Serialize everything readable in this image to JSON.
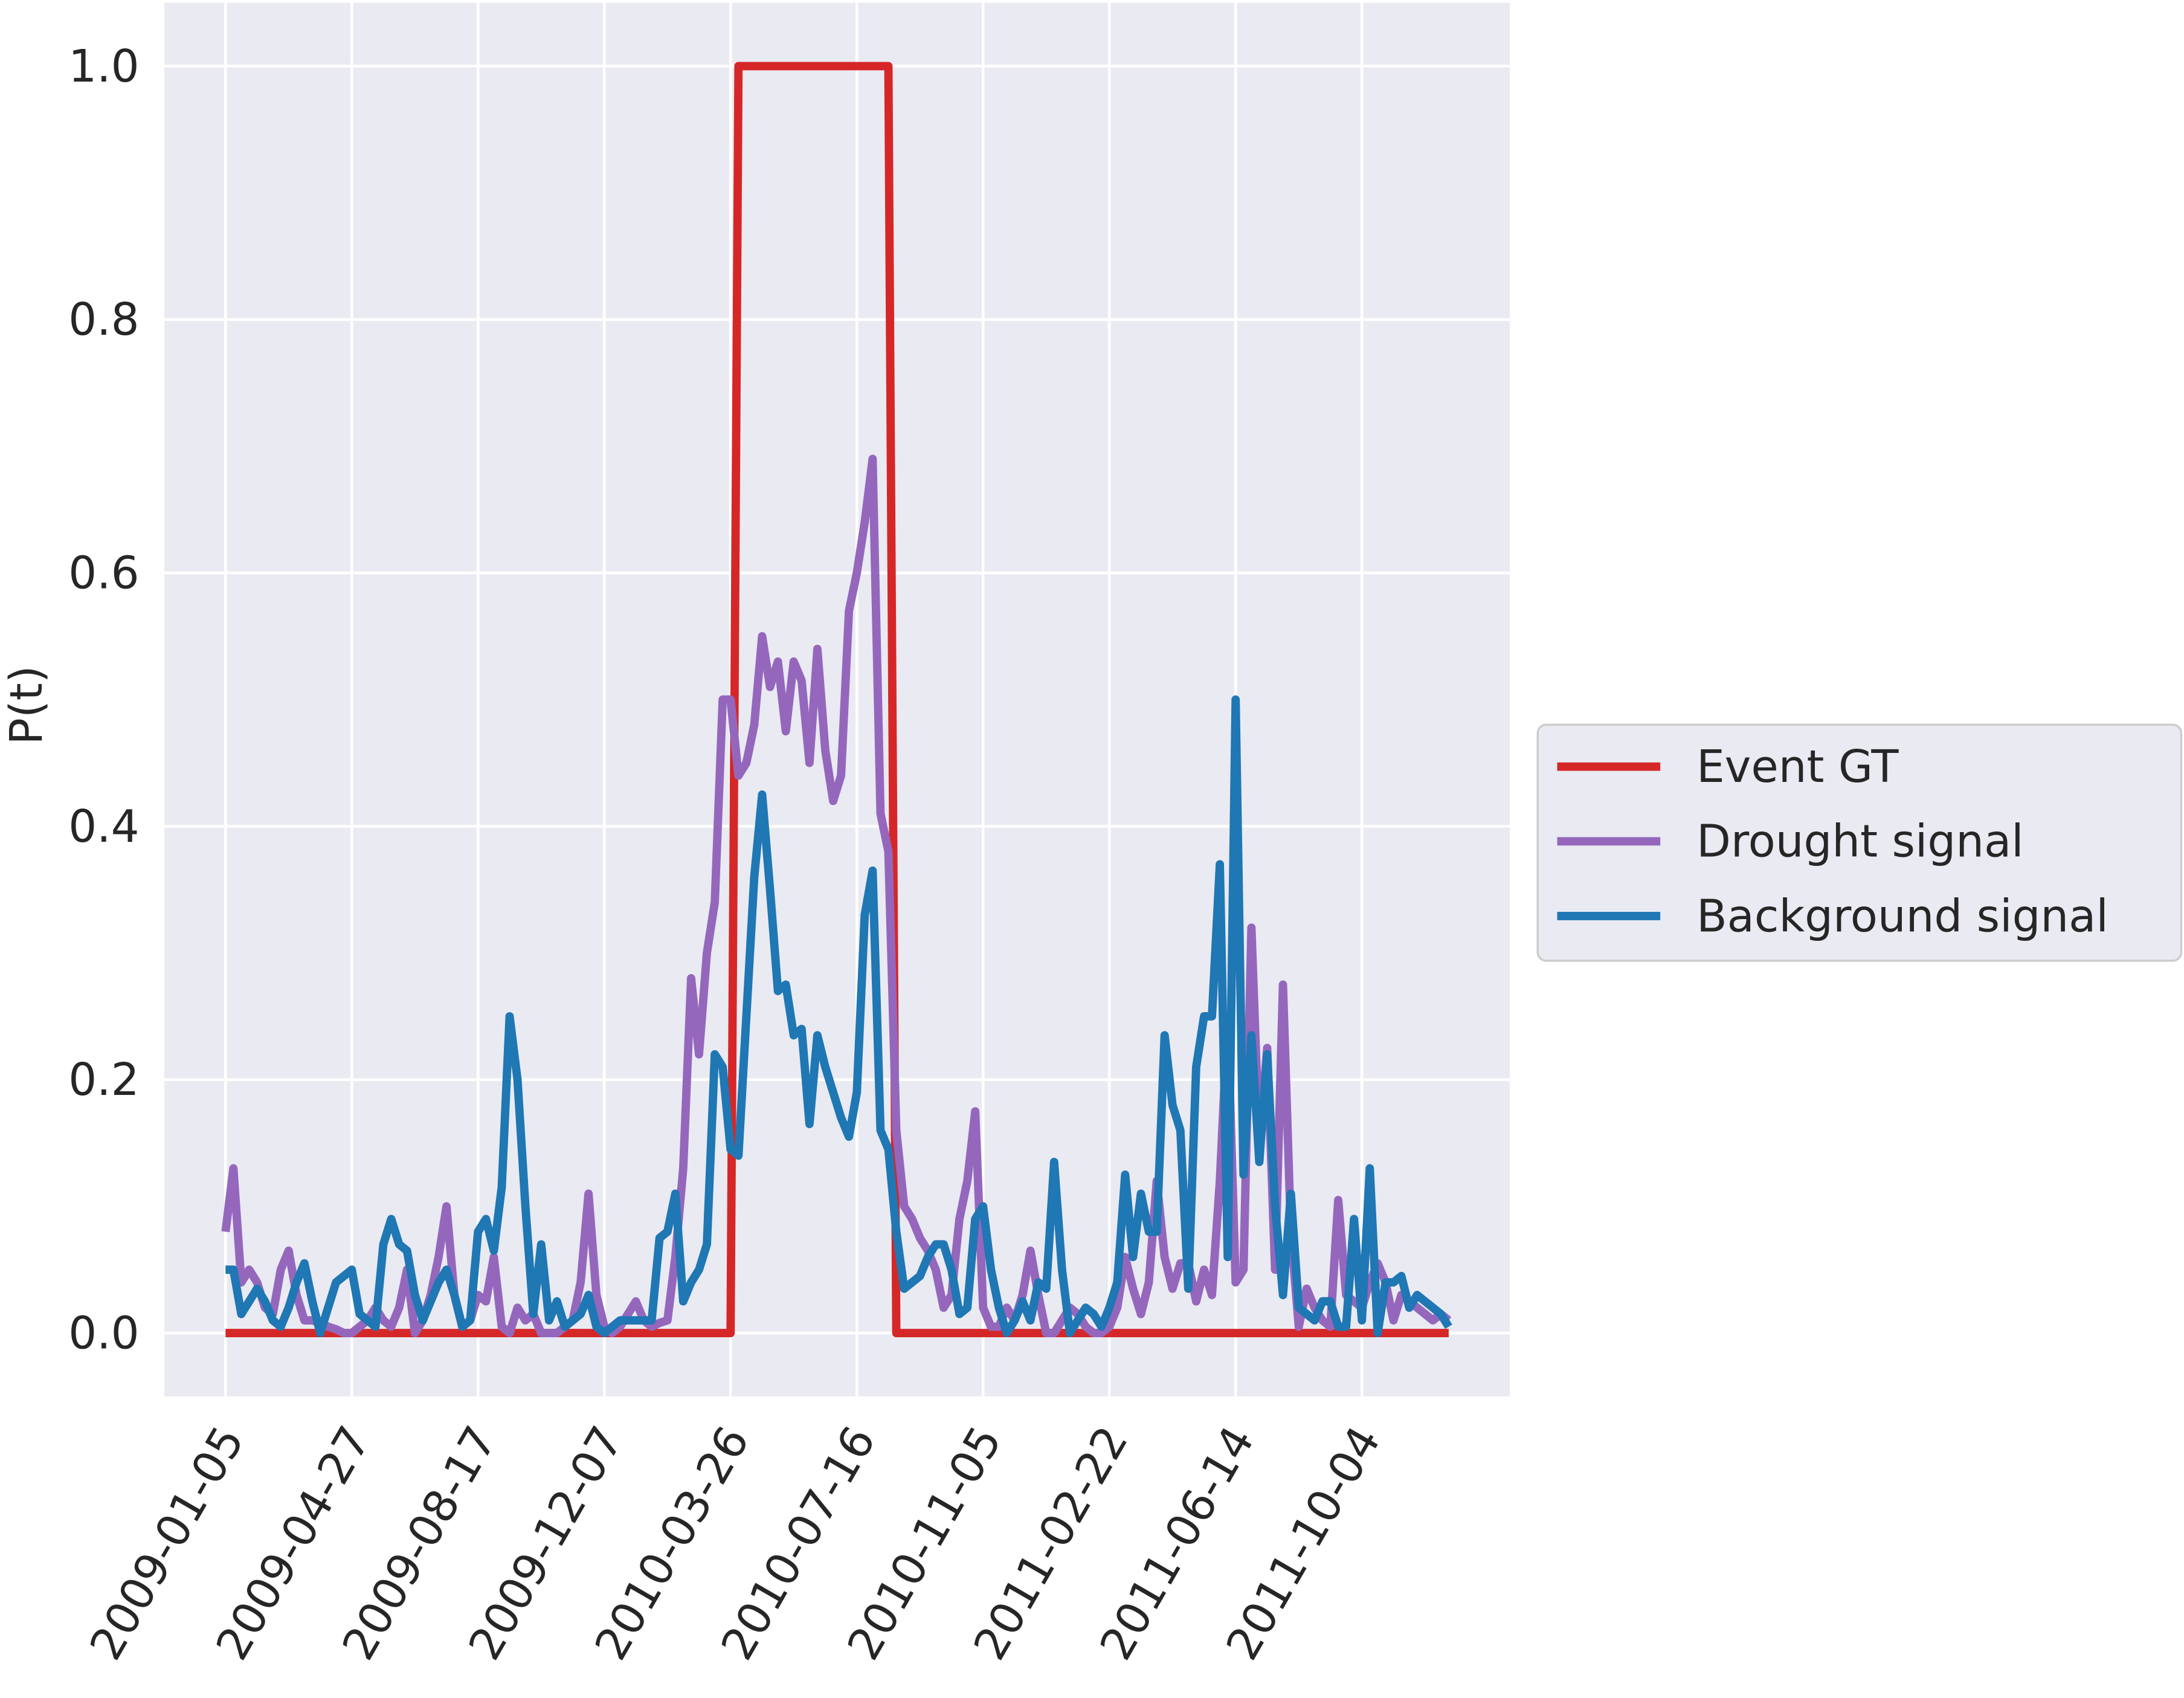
{
  "chart_data": {
    "type": "line",
    "ylabel": "P(t)",
    "categories": [
      "2009-01-05",
      null,
      null,
      null,
      null,
      null,
      null,
      null,
      null,
      null,
      null,
      null,
      null,
      null,
      null,
      null,
      "2009-04-27",
      null,
      null,
      null,
      null,
      null,
      null,
      null,
      null,
      null,
      null,
      null,
      null,
      null,
      null,
      null,
      "2009-08-17",
      null,
      null,
      null,
      null,
      null,
      null,
      null,
      null,
      null,
      null,
      null,
      null,
      null,
      null,
      null,
      "2009-12-07",
      null,
      null,
      null,
      null,
      null,
      null,
      null,
      null,
      null,
      null,
      null,
      null,
      null,
      null,
      null,
      "2010-03-26",
      null,
      null,
      null,
      null,
      null,
      null,
      null,
      null,
      null,
      null,
      null,
      null,
      null,
      null,
      null,
      "2010-07-16",
      null,
      null,
      null,
      null,
      null,
      null,
      null,
      null,
      null,
      null,
      null,
      null,
      null,
      null,
      null,
      "2010-11-05",
      null,
      null,
      null,
      null,
      null,
      null,
      null,
      null,
      null,
      null,
      null,
      null,
      null,
      null,
      null,
      "2011-02-22",
      null,
      null,
      null,
      null,
      null,
      null,
      null,
      null,
      null,
      null,
      null,
      null,
      null,
      null,
      null,
      "2011-06-14",
      null,
      null,
      null,
      null,
      null,
      null,
      null,
      null,
      null,
      null,
      null,
      null,
      null,
      null,
      null,
      "2011-10-04",
      null,
      null,
      null,
      null,
      null,
      null,
      null,
      null,
      null,
      null,
      null
    ],
    "series": [
      {
        "name": "Event GT",
        "color": "#d62728",
        "values": [
          0,
          0,
          0,
          0,
          0,
          0,
          0,
          0,
          0,
          0,
          0,
          0,
          0,
          0,
          0,
          0,
          0,
          0,
          0,
          0,
          0,
          0,
          0,
          0,
          0,
          0,
          0,
          0,
          0,
          0,
          0,
          0,
          0,
          0,
          0,
          0,
          0,
          0,
          0,
          0,
          0,
          0,
          0,
          0,
          0,
          0,
          0,
          0,
          0,
          0,
          0,
          0,
          0,
          0,
          0,
          0,
          0,
          0,
          0,
          0,
          0,
          0,
          0,
          0,
          0,
          1,
          1,
          1,
          1,
          1,
          1,
          1,
          1,
          1,
          1,
          1,
          1,
          1,
          1,
          1,
          1,
          1,
          1,
          1,
          1,
          0,
          0,
          0,
          0,
          0,
          0,
          0,
          0,
          0,
          0,
          0,
          0,
          0,
          0,
          0,
          0,
          0,
          0,
          0,
          0,
          0,
          0,
          0,
          0,
          0,
          0,
          0,
          0,
          0,
          0,
          0,
          0,
          0,
          0,
          0,
          0,
          0,
          0,
          0,
          0,
          0,
          0,
          0,
          0,
          0,
          0,
          0,
          0,
          0,
          0,
          0,
          0,
          0,
          0,
          0,
          0,
          0,
          0,
          0,
          0,
          0,
          0,
          0,
          0,
          0,
          0,
          0,
          0,
          0,
          0,
          0
        ]
      },
      {
        "name": "Drought signal",
        "color": "#9467bd",
        "values": [
          0.08,
          0.13,
          0.04,
          0.05,
          0.04,
          0.02,
          0.015,
          0.05,
          0.065,
          0.03,
          0.01,
          0.01,
          0.008,
          0.005,
          0.003,
          0,
          0,
          0.005,
          0.01,
          0.02,
          0.01,
          0.005,
          0.02,
          0.05,
          0,
          0.01,
          0.03,
          0.06,
          0.1,
          0.03,
          0.005,
          0.01,
          0.03,
          0.025,
          0.06,
          0.005,
          0,
          0.02,
          0.01,
          0.015,
          0,
          0,
          0,
          0.005,
          0.01,
          0.04,
          0.11,
          0.03,
          0.005,
          0,
          0.005,
          0.015,
          0.025,
          0.01,
          0.005,
          0.008,
          0.01,
          0.06,
          0.13,
          0.28,
          0.22,
          0.3,
          0.34,
          0.5,
          0.5,
          0.44,
          0.45,
          0.48,
          0.55,
          0.51,
          0.53,
          0.475,
          0.53,
          0.515,
          0.45,
          0.54,
          0.46,
          0.42,
          0.44,
          0.57,
          0.6,
          0.64,
          0.69,
          0.41,
          0.38,
          0.16,
          0.1,
          0.09,
          0.075,
          0.065,
          0.05,
          0.02,
          0.03,
          0.09,
          0.12,
          0.175,
          0.02,
          0.005,
          0.005,
          0.02,
          0.01,
          0.03,
          0.065,
          0.03,
          0,
          0,
          0.01,
          0.02,
          0.015,
          0.005,
          0,
          0,
          0.005,
          0.02,
          0.06,
          0.035,
          0.015,
          0.04,
          0.12,
          0.06,
          0.035,
          0.055,
          0.055,
          0.025,
          0.05,
          0.03,
          0.12,
          0.25,
          0.04,
          0.05,
          0.32,
          0.15,
          0.225,
          0.05,
          0.275,
          0.08,
          0.005,
          0.035,
          0.02,
          0.01,
          0.005,
          0.105,
          0.03,
          0.025,
          0.02,
          0.04,
          0.055,
          0.04,
          0.01,
          0.03,
          0.025,
          0.02,
          0.015,
          0.01,
          0.015,
          0.01
        ]
      },
      {
        "name": "Background signal",
        "color": "#1f77b4",
        "values": [
          0.05,
          0.05,
          0.015,
          0.025,
          0.035,
          0.025,
          0.01,
          0.005,
          0.02,
          0.04,
          0.055,
          0.025,
          0,
          0.02,
          0.04,
          0.045,
          0.05,
          0.015,
          0.01,
          0.005,
          0.07,
          0.09,
          0.07,
          0.065,
          0.03,
          0.01,
          0.025,
          0.04,
          0.05,
          0.03,
          0.005,
          0.01,
          0.08,
          0.09,
          0.065,
          0.115,
          0.25,
          0.2,
          0.1,
          0.015,
          0.07,
          0.01,
          0.025,
          0.005,
          0.01,
          0.015,
          0.03,
          0.005,
          0,
          0.005,
          0.01,
          0.01,
          0.01,
          0.01,
          0.01,
          0.075,
          0.08,
          0.11,
          0.025,
          0.04,
          0.05,
          0.07,
          0.22,
          0.21,
          0.145,
          0.14,
          0.25,
          0.36,
          0.425,
          0.35,
          0.27,
          0.275,
          0.235,
          0.24,
          0.165,
          0.235,
          0.21,
          0.19,
          0.17,
          0.155,
          0.19,
          0.33,
          0.365,
          0.16,
          0.145,
          0.08,
          0.035,
          0.04,
          0.045,
          0.06,
          0.07,
          0.07,
          0.05,
          0.015,
          0.02,
          0.09,
          0.1,
          0.05,
          0.02,
          0,
          0.01,
          0.025,
          0.01,
          0.04,
          0.035,
          0.135,
          0.05,
          0,
          0.01,
          0.02,
          0.015,
          0.005,
          0.02,
          0.04,
          0.125,
          0.06,
          0.11,
          0.08,
          0.08,
          0.235,
          0.18,
          0.16,
          0.035,
          0.21,
          0.25,
          0.25,
          0.37,
          0.06,
          0.5,
          0.125,
          0.235,
          0.135,
          0.22,
          0.1,
          0.03,
          0.11,
          0.02,
          0.015,
          0.01,
          0.025,
          0.025,
          0.005,
          0.005,
          0.09,
          0.01,
          0.13,
          0,
          0.04,
          0.04,
          0.045,
          0.02,
          0.03,
          0.025,
          0.02,
          0.015,
          0.005
        ]
      }
    ],
    "ylim": [
      -0.05,
      1.05
    ],
    "yticks": [
      {
        "value": 0,
        "label": "0.0"
      },
      {
        "value": 0.2,
        "label": "0.2"
      },
      {
        "value": 0.4,
        "label": "0.4"
      },
      {
        "value": 0.6,
        "label": "0.6"
      },
      {
        "value": 0.8,
        "label": "0.8"
      },
      {
        "value": 1,
        "label": "1.0"
      }
    ],
    "grid": true,
    "legend": "right"
  }
}
